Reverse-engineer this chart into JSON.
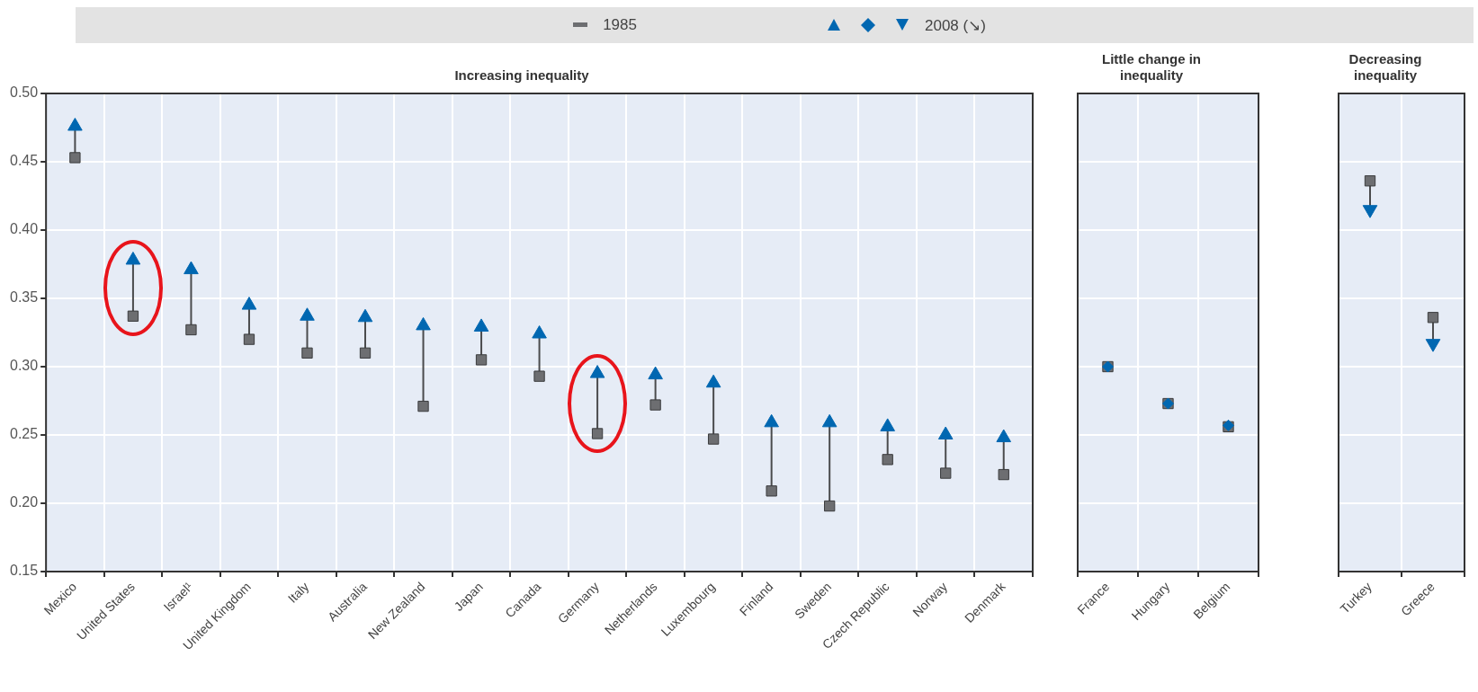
{
  "chart_data": [
    {
      "type": "scatter",
      "title": "Increasing inequality",
      "categories": [
        "Mexico",
        "United States",
        "Israel¹",
        "United Kingdom",
        "Italy",
        "Australia",
        "New Zealand",
        "Japan",
        "Canada",
        "Germany",
        "Netherlands",
        "Luxembourg",
        "Finland",
        "Sweden",
        "Czech Republic",
        "Norway",
        "Denmark"
      ],
      "series": [
        {
          "name": "1985",
          "color": "#6d6e71",
          "marker": "square",
          "values": [
            0.453,
            0.337,
            0.327,
            0.32,
            0.31,
            0.31,
            0.271,
            0.305,
            0.293,
            0.251,
            0.272,
            0.247,
            0.209,
            0.198,
            0.232,
            0.222,
            0.221
          ]
        },
        {
          "name": "2008 (↘)",
          "color": "#0067b1",
          "marker": "triangle",
          "values": [
            0.476,
            0.378,
            0.371,
            0.345,
            0.337,
            0.336,
            0.33,
            0.329,
            0.324,
            0.295,
            0.294,
            0.288,
            0.259,
            0.259,
            0.256,
            0.25,
            0.248
          ]
        }
      ],
      "ylim": [
        0.15,
        0.5
      ],
      "yticks": [
        0.15,
        {
          "value": 0.2,
          "label": "0.20"
        },
        0.25,
        {
          "value": 0.3,
          "label": "0.30"
        },
        0.35,
        {
          "value": 0.4,
          "label": "0.40"
        },
        0.45,
        {
          "value": 0.5,
          "label": "0.50"
        }
      ],
      "grid": true,
      "legend": "top"
    },
    {
      "type": "scatter",
      "title": "Little change in inequality",
      "categories": [
        "France",
        "Hungary",
        "Belgium"
      ],
      "series": [
        {
          "color": "#6d6e71",
          "marker": "square",
          "values": [
            0.3,
            0.273,
            0.256
          ]
        },
        {
          "color": "#0067b1",
          "marker": "diamond",
          "values": [
            0.3,
            0.273,
            0.257
          ]
        }
      ],
      "ylim": [
        0.15,
        0.5
      ],
      "yticks": [
        0.15,
        0.2,
        0.25,
        0.3,
        0.35,
        0.4,
        0.45,
        0.5
      ],
      "grid": true,
      "tick_labels": "x"
    },
    {
      "type": "scatter",
      "title": "Decreasing inequality",
      "categories": [
        "Turkey",
        "Greece"
      ],
      "series": [
        {
          "color": "#6d6e71",
          "marker": "square",
          "values": [
            0.436,
            0.336
          ]
        },
        {
          "color": "#0067b1",
          "marker": "triangle",
          "values": [
            0.415,
            0.317
          ]
        }
      ],
      "ylim": [
        0.15,
        0.5
      ],
      "yticks": [
        0.15,
        0.2,
        0.25,
        0.3,
        0.35,
        0.4,
        0.45,
        0.5
      ],
      "grid": true,
      "tick_labels": "x"
    }
  ]
}
